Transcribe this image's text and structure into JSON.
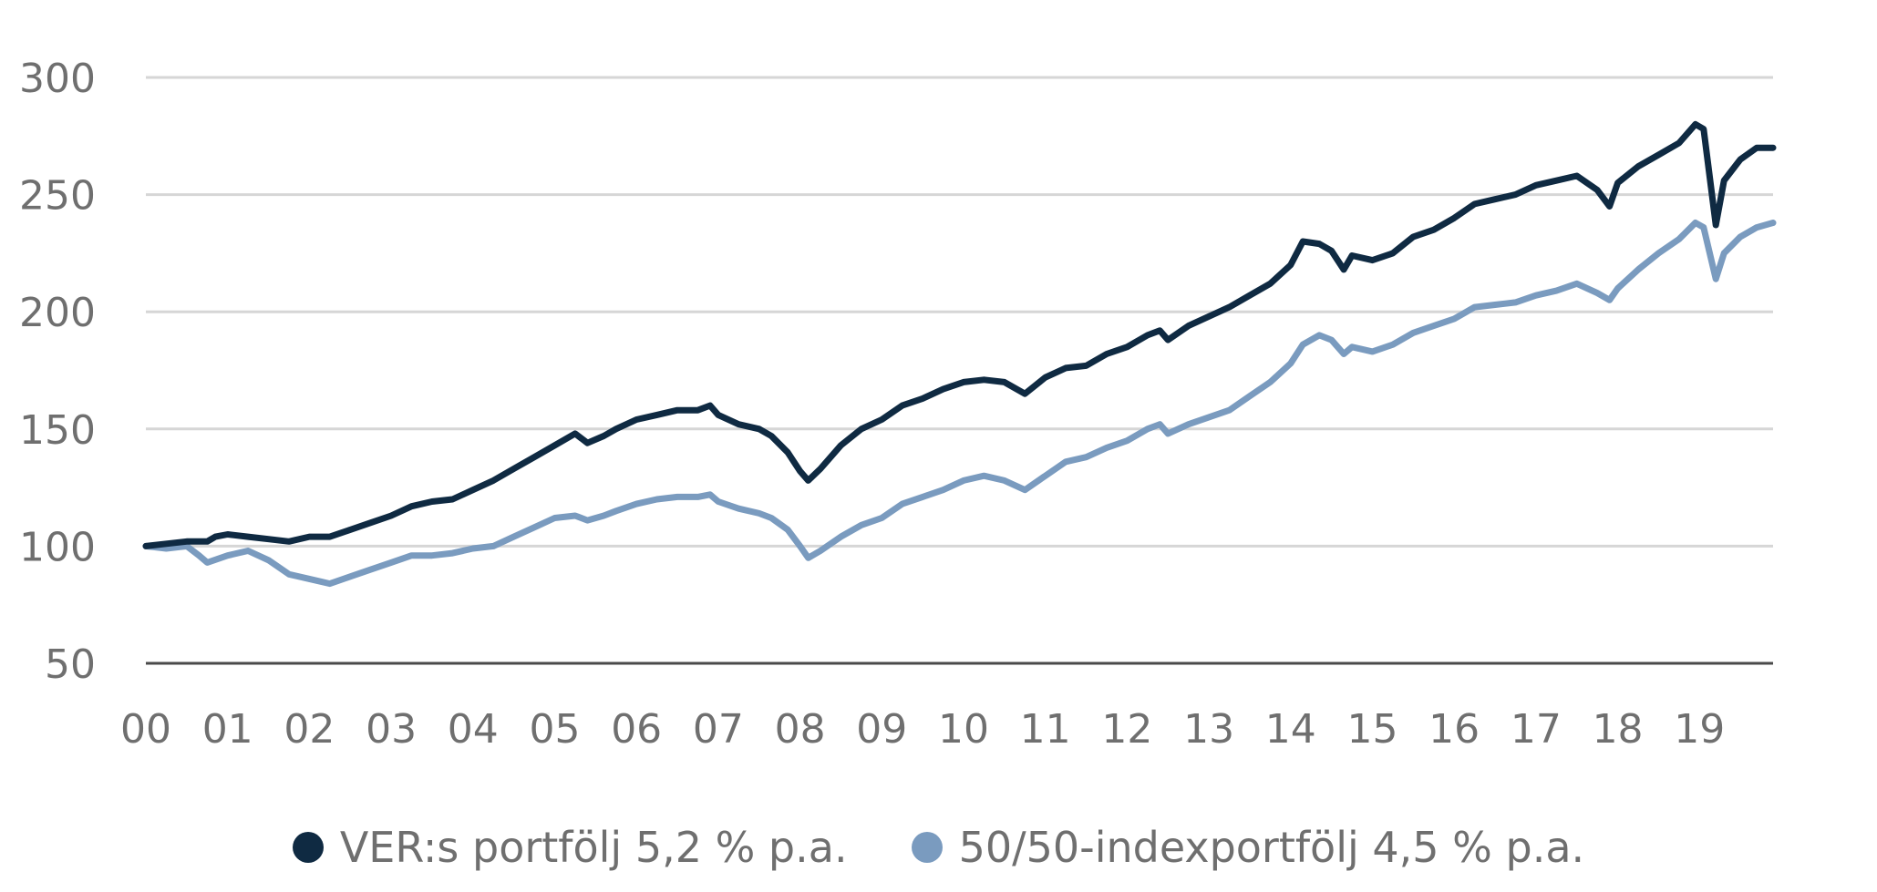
{
  "chart_data": {
    "type": "line",
    "ylim": [
      50,
      300
    ],
    "yticks": [
      50,
      100,
      150,
      200,
      250,
      300
    ],
    "xlim": [
      0,
      19.9
    ],
    "xticks": [
      {
        "x": 0,
        "label": "00"
      },
      {
        "x": 1,
        "label": "01"
      },
      {
        "x": 2,
        "label": "02"
      },
      {
        "x": 3,
        "label": "03"
      },
      {
        "x": 4,
        "label": "04"
      },
      {
        "x": 5,
        "label": "05"
      },
      {
        "x": 6,
        "label": "06"
      },
      {
        "x": 7,
        "label": "07"
      },
      {
        "x": 8,
        "label": "08"
      },
      {
        "x": 9,
        "label": "09"
      },
      {
        "x": 10,
        "label": "10"
      },
      {
        "x": 11,
        "label": "11"
      },
      {
        "x": 12,
        "label": "12"
      },
      {
        "x": 13,
        "label": "13"
      },
      {
        "x": 14,
        "label": "14"
      },
      {
        "x": 15,
        "label": "15"
      },
      {
        "x": 16,
        "label": "16"
      },
      {
        "x": 17,
        "label": "17"
      },
      {
        "x": 18,
        "label": "18"
      },
      {
        "x": 19,
        "label": "19"
      }
    ],
    "grid": true,
    "legend_position": "bottom",
    "series": [
      {
        "name": "VER:s portfölj 5,2 % p.a.",
        "color": "#0f2a42",
        "points": [
          [
            0,
            100
          ],
          [
            0.25,
            101
          ],
          [
            0.5,
            102
          ],
          [
            0.75,
            102
          ],
          [
            0.85,
            104
          ],
          [
            1,
            105
          ],
          [
            1.25,
            104
          ],
          [
            1.5,
            103
          ],
          [
            1.75,
            102
          ],
          [
            2,
            104
          ],
          [
            2.25,
            104
          ],
          [
            2.5,
            107
          ],
          [
            2.75,
            110
          ],
          [
            3,
            113
          ],
          [
            3.25,
            117
          ],
          [
            3.5,
            119
          ],
          [
            3.75,
            120
          ],
          [
            4,
            124
          ],
          [
            4.25,
            128
          ],
          [
            4.5,
            133
          ],
          [
            4.75,
            138
          ],
          [
            5,
            143
          ],
          [
            5.25,
            148
          ],
          [
            5.4,
            144
          ],
          [
            5.6,
            147
          ],
          [
            5.75,
            150
          ],
          [
            6,
            154
          ],
          [
            6.25,
            156
          ],
          [
            6.5,
            158
          ],
          [
            6.75,
            158
          ],
          [
            6.9,
            160
          ],
          [
            7,
            156
          ],
          [
            7.25,
            152
          ],
          [
            7.5,
            150
          ],
          [
            7.65,
            147
          ],
          [
            7.85,
            140
          ],
          [
            8,
            132
          ],
          [
            8.1,
            128
          ],
          [
            8.25,
            133
          ],
          [
            8.5,
            143
          ],
          [
            8.75,
            150
          ],
          [
            9,
            154
          ],
          [
            9.25,
            160
          ],
          [
            9.5,
            163
          ],
          [
            9.75,
            167
          ],
          [
            10,
            170
          ],
          [
            10.25,
            171
          ],
          [
            10.5,
            170
          ],
          [
            10.75,
            165
          ],
          [
            11,
            172
          ],
          [
            11.25,
            176
          ],
          [
            11.5,
            177
          ],
          [
            11.75,
            182
          ],
          [
            12,
            185
          ],
          [
            12.25,
            190
          ],
          [
            12.4,
            192
          ],
          [
            12.5,
            188
          ],
          [
            12.75,
            194
          ],
          [
            13,
            198
          ],
          [
            13.25,
            202
          ],
          [
            13.5,
            207
          ],
          [
            13.75,
            212
          ],
          [
            14,
            220
          ],
          [
            14.15,
            230
          ],
          [
            14.35,
            229
          ],
          [
            14.5,
            226
          ],
          [
            14.65,
            218
          ],
          [
            14.75,
            224
          ],
          [
            15,
            222
          ],
          [
            15.25,
            225
          ],
          [
            15.5,
            232
          ],
          [
            15.75,
            235
          ],
          [
            16,
            240
          ],
          [
            16.25,
            246
          ],
          [
            16.5,
            248
          ],
          [
            16.75,
            250
          ],
          [
            17,
            254
          ],
          [
            17.25,
            256
          ],
          [
            17.5,
            258
          ],
          [
            17.75,
            252
          ],
          [
            17.9,
            245
          ],
          [
            18,
            255
          ],
          [
            18.25,
            262
          ],
          [
            18.5,
            267
          ],
          [
            18.75,
            272
          ],
          [
            18.95,
            280
          ],
          [
            19.05,
            278
          ],
          [
            19.2,
            237
          ],
          [
            19.3,
            256
          ],
          [
            19.5,
            265
          ],
          [
            19.7,
            270
          ],
          [
            19.9,
            270
          ]
        ]
      },
      {
        "name": "50/50-indexportfölj 4,5 % p.a.",
        "color": "#7a9bbf",
        "points": [
          [
            0,
            100
          ],
          [
            0.25,
            99
          ],
          [
            0.5,
            100
          ],
          [
            0.65,
            96
          ],
          [
            0.75,
            93
          ],
          [
            1,
            96
          ],
          [
            1.25,
            98
          ],
          [
            1.5,
            94
          ],
          [
            1.75,
            88
          ],
          [
            2,
            86
          ],
          [
            2.25,
            84
          ],
          [
            2.5,
            87
          ],
          [
            2.75,
            90
          ],
          [
            3,
            93
          ],
          [
            3.25,
            96
          ],
          [
            3.5,
            96
          ],
          [
            3.75,
            97
          ],
          [
            4,
            99
          ],
          [
            4.25,
            100
          ],
          [
            4.5,
            104
          ],
          [
            4.75,
            108
          ],
          [
            5,
            112
          ],
          [
            5.25,
            113
          ],
          [
            5.4,
            111
          ],
          [
            5.6,
            113
          ],
          [
            5.75,
            115
          ],
          [
            6,
            118
          ],
          [
            6.25,
            120
          ],
          [
            6.5,
            121
          ],
          [
            6.75,
            121
          ],
          [
            6.9,
            122
          ],
          [
            7,
            119
          ],
          [
            7.25,
            116
          ],
          [
            7.5,
            114
          ],
          [
            7.65,
            112
          ],
          [
            7.85,
            107
          ],
          [
            8,
            100
          ],
          [
            8.1,
            95
          ],
          [
            8.25,
            98
          ],
          [
            8.5,
            104
          ],
          [
            8.75,
            109
          ],
          [
            9,
            112
          ],
          [
            9.25,
            118
          ],
          [
            9.5,
            121
          ],
          [
            9.75,
            124
          ],
          [
            10,
            128
          ],
          [
            10.25,
            130
          ],
          [
            10.5,
            128
          ],
          [
            10.75,
            124
          ],
          [
            11,
            130
          ],
          [
            11.25,
            136
          ],
          [
            11.5,
            138
          ],
          [
            11.75,
            142
          ],
          [
            12,
            145
          ],
          [
            12.25,
            150
          ],
          [
            12.4,
            152
          ],
          [
            12.5,
            148
          ],
          [
            12.75,
            152
          ],
          [
            13,
            155
          ],
          [
            13.25,
            158
          ],
          [
            13.5,
            164
          ],
          [
            13.75,
            170
          ],
          [
            14,
            178
          ],
          [
            14.15,
            186
          ],
          [
            14.35,
            190
          ],
          [
            14.5,
            188
          ],
          [
            14.65,
            182
          ],
          [
            14.75,
            185
          ],
          [
            15,
            183
          ],
          [
            15.25,
            186
          ],
          [
            15.5,
            191
          ],
          [
            15.75,
            194
          ],
          [
            16,
            197
          ],
          [
            16.25,
            202
          ],
          [
            16.5,
            203
          ],
          [
            16.75,
            204
          ],
          [
            17,
            207
          ],
          [
            17.25,
            209
          ],
          [
            17.5,
            212
          ],
          [
            17.75,
            208
          ],
          [
            17.9,
            205
          ],
          [
            18,
            210
          ],
          [
            18.25,
            218
          ],
          [
            18.5,
            225
          ],
          [
            18.75,
            231
          ],
          [
            18.95,
            238
          ],
          [
            19.05,
            236
          ],
          [
            19.2,
            214
          ],
          [
            19.3,
            225
          ],
          [
            19.5,
            232
          ],
          [
            19.7,
            236
          ],
          [
            19.9,
            238
          ]
        ]
      }
    ]
  },
  "legend": {
    "items": [
      {
        "label": "VER:s portfölj 5,2 % p.a.",
        "color": "#0f2a42"
      },
      {
        "label": "50/50-indexportfölj 4,5 % p.a.",
        "color": "#7a9bbf"
      }
    ]
  }
}
